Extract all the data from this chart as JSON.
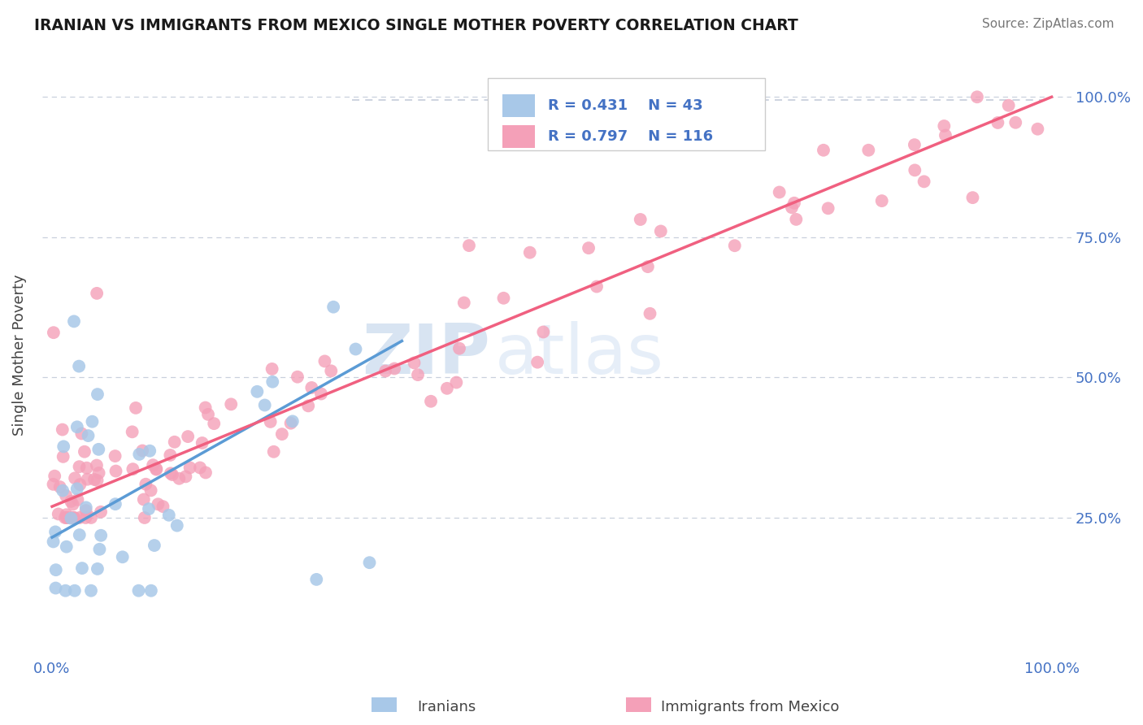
{
  "title": "IRANIAN VS IMMIGRANTS FROM MEXICO SINGLE MOTHER POVERTY CORRELATION CHART",
  "source": "Source: ZipAtlas.com",
  "ylabel": "Single Mother Poverty",
  "xtick_labels": [
    "0.0%",
    "100.0%"
  ],
  "ytick_right_labels": [
    "25.0%",
    "50.0%",
    "75.0%",
    "100.0%"
  ],
  "ytick_right_vals": [
    0.25,
    0.5,
    0.75,
    1.0
  ],
  "legend_r1": "0.431",
  "legend_n1": "43",
  "legend_r2": "0.797",
  "legend_n2": "116",
  "color_iranian": "#a8c8e8",
  "color_mexico": "#f4a0b8",
  "color_line_iranian": "#5b9bd5",
  "color_line_mexico": "#f06080",
  "color_dashed": "#c0c8d8",
  "color_tick_label": "#4472c4",
  "watermark_zip": "ZIP",
  "watermark_atlas": "atlas",
  "legend_bottom_label1": "Iranians",
  "legend_bottom_label2": "Immigrants from Mexico",
  "iran_line_x0": 0.0,
  "iran_line_y0": 0.215,
  "iran_line_x1": 0.35,
  "iran_line_y1": 0.565,
  "mex_line_x0": 0.0,
  "mex_line_y0": 0.27,
  "mex_line_x1": 1.0,
  "mex_line_y1": 1.0,
  "dash_line_x0": 0.4,
  "dash_line_y0": 0.99,
  "dash_line_x1": 1.0,
  "dash_line_y1": 0.99,
  "xlim_lo": -0.01,
  "xlim_hi": 1.02,
  "ylim_lo": 0.0,
  "ylim_hi": 1.08
}
